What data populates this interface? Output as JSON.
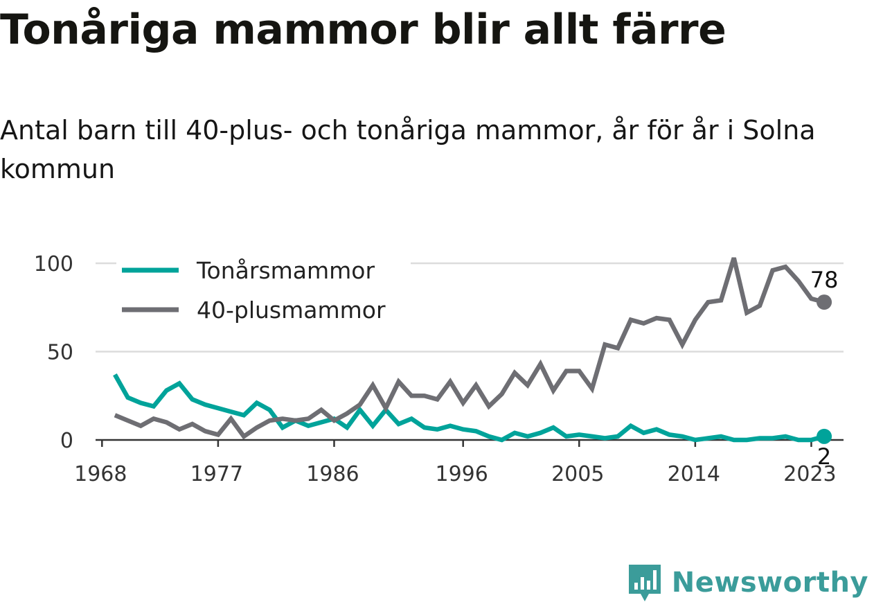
{
  "title": "Tonåriga mammor blir allt färre",
  "subtitle": "Antal barn till 40-plus- och tonåriga mammor, år för år i Solna kommun",
  "brand": "Newsworthy",
  "chart_data": {
    "type": "line",
    "x": [
      1969,
      1970,
      1971,
      1972,
      1973,
      1974,
      1975,
      1976,
      1977,
      1978,
      1979,
      1980,
      1981,
      1982,
      1983,
      1984,
      1985,
      1986,
      1987,
      1988,
      1989,
      1990,
      1991,
      1992,
      1993,
      1994,
      1995,
      1996,
      1997,
      1998,
      1999,
      2000,
      2001,
      2002,
      2003,
      2004,
      2005,
      2006,
      2007,
      2008,
      2009,
      2010,
      2011,
      2012,
      2013,
      2014,
      2015,
      2016,
      2017,
      2018,
      2019,
      2020,
      2021,
      2022,
      2023,
      2024
    ],
    "series": [
      {
        "name": "Tonårsmammor",
        "color": "#00a39a",
        "values": [
          37,
          24,
          21,
          19,
          28,
          32,
          23,
          20,
          18,
          16,
          14,
          21,
          17,
          7,
          11,
          8,
          10,
          12,
          7,
          17,
          8,
          17,
          9,
          12,
          7,
          6,
          8,
          6,
          5,
          2,
          0,
          4,
          2,
          4,
          7,
          2,
          3,
          2,
          1,
          2,
          8,
          4,
          6,
          3,
          2,
          0,
          1,
          2,
          0,
          0,
          1,
          1,
          2,
          0,
          0,
          2
        ]
      },
      {
        "name": "40-plusmammor",
        "color": "#6e6e73",
        "values": [
          14,
          11,
          8,
          12,
          10,
          6,
          9,
          5,
          3,
          12,
          2,
          7,
          11,
          12,
          11,
          12,
          17,
          11,
          15,
          20,
          31,
          18,
          33,
          25,
          25,
          23,
          33,
          21,
          31,
          19,
          26,
          38,
          31,
          43,
          28,
          39,
          39,
          29,
          54,
          52,
          68,
          66,
          69,
          68,
          54,
          68,
          78,
          79,
          103,
          72,
          76,
          96,
          98,
          90,
          80,
          78
        ]
      }
    ],
    "xticks": [
      "1968",
      "1977",
      "1986",
      "1996",
      "2005",
      "2014",
      "2023"
    ],
    "xtick_years": [
      1968,
      1977,
      1986,
      1996,
      2005,
      2014,
      2023
    ],
    "yticks": [
      "0",
      "50",
      "100"
    ],
    "ytick_values": [
      0,
      50,
      100
    ],
    "xlim": [
      1967.5,
      2025.5
    ],
    "ylim": [
      0,
      100
    ],
    "end_labels": [
      "2",
      "78"
    ],
    "grid": "horizontal",
    "legend_position": "top-left"
  }
}
